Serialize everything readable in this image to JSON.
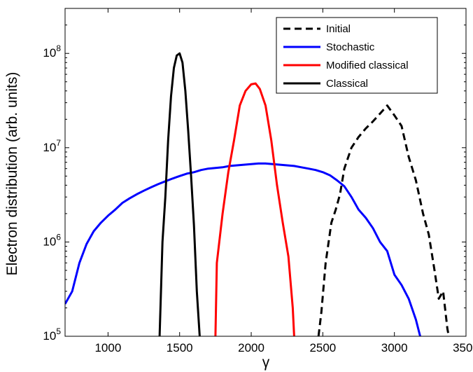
{
  "chart_data": {
    "type": "line",
    "xlabel": "γ",
    "ylabel": "Electron distribution (arb. units)",
    "xlim": [
      700,
      3500
    ],
    "ylim": [
      100000,
      300000000
    ],
    "y_scale": "log",
    "x_ticks": [
      1000,
      1500,
      2000,
      2500,
      3000,
      3500
    ],
    "x_tick_labels": [
      "1000",
      "1500",
      "2000",
      "2500",
      "3000",
      "3500"
    ],
    "y_ticks": [
      100000,
      1000000,
      10000000,
      100000000
    ],
    "y_tick_labels": [
      {
        "base": "10",
        "exp": "5"
      },
      {
        "base": "10",
        "exp": "6"
      },
      {
        "base": "10",
        "exp": "7"
      },
      {
        "base": "10",
        "exp": "8"
      }
    ],
    "grid": false,
    "legend_position": "top-right",
    "series": [
      {
        "name": "Initial",
        "color": "#000000",
        "style": "dashed",
        "x": [
          2470,
          2490,
          2520,
          2560,
          2590,
          2620,
          2650,
          2700,
          2750,
          2800,
          2850,
          2900,
          2950,
          3000,
          3050,
          3100,
          3150,
          3200,
          3240,
          3280,
          3310,
          3340,
          3370,
          3380
        ],
        "y": [
          100000,
          180000,
          600000,
          1600000,
          2200000,
          3200000,
          6000000,
          10000000,
          13000000,
          16000000,
          19000000,
          23000000,
          28000000,
          22000000,
          17000000,
          8000000,
          4500000,
          2000000,
          1200000,
          500000,
          250000,
          300000,
          120000,
          100000
        ]
      },
      {
        "name": "Stochastic",
        "color": "#0000ff",
        "style": "solid",
        "x": [
          700,
          750,
          800,
          850,
          900,
          950,
          1000,
          1050,
          1100,
          1150,
          1200,
          1250,
          1300,
          1350,
          1400,
          1450,
          1500,
          1550,
          1600,
          1650,
          1700,
          1750,
          1800,
          1850,
          1900,
          1950,
          2000,
          2050,
          2100,
          2150,
          2200,
          2250,
          2300,
          2350,
          2400,
          2450,
          2500,
          2550,
          2600,
          2650,
          2700,
          2750,
          2800,
          2850,
          2900,
          2950,
          3000,
          3050,
          3100,
          3150,
          3180
        ],
        "y": [
          220000,
          300000,
          600000,
          950000,
          1300000,
          1600000,
          1900000,
          2200000,
          2600000,
          2900000,
          3200000,
          3500000,
          3800000,
          4100000,
          4400000,
          4700000,
          5000000,
          5300000,
          5500000,
          5800000,
          6000000,
          6100000,
          6200000,
          6400000,
          6500000,
          6600000,
          6700000,
          6800000,
          6800000,
          6700000,
          6600000,
          6500000,
          6400000,
          6200000,
          6000000,
          5800000,
          5500000,
          5100000,
          4500000,
          3900000,
          3000000,
          2200000,
          1800000,
          1400000,
          1000000,
          800000,
          450000,
          350000,
          250000,
          150000,
          100000
        ]
      },
      {
        "name": "Modified classical",
        "color": "#ff0000",
        "style": "solid",
        "x": [
          1750,
          1760,
          1800,
          1840,
          1880,
          1920,
          1960,
          2000,
          2030,
          2060,
          2100,
          2140,
          2180,
          2220,
          2260,
          2290,
          2300
        ],
        "y": [
          100000,
          600000,
          2000000,
          5500000,
          12000000,
          28000000,
          40000000,
          47000000,
          48000000,
          42000000,
          28000000,
          12000000,
          4000000,
          1600000,
          700000,
          200000,
          100000
        ]
      },
      {
        "name": "Classical",
        "color": "#000000",
        "style": "solid",
        "x": [
          1360,
          1380,
          1400,
          1420,
          1440,
          1460,
          1480,
          1500,
          1520,
          1540,
          1560,
          1580,
          1600,
          1620,
          1640
        ],
        "y": [
          100000,
          1000000,
          3000000,
          12000000,
          35000000,
          70000000,
          95000000,
          100000000,
          80000000,
          40000000,
          15000000,
          5000000,
          1500000,
          300000,
          100000
        ]
      }
    ]
  }
}
